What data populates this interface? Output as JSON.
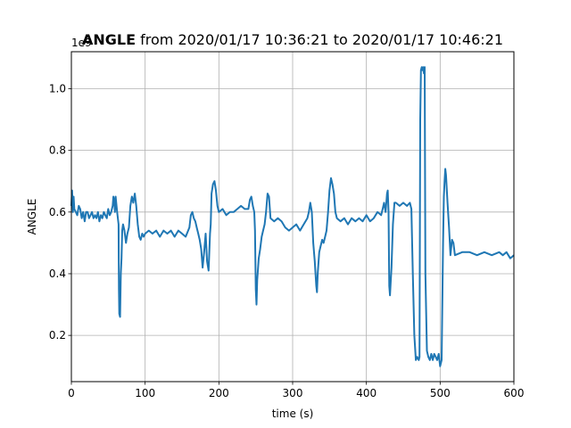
{
  "chart_data": {
    "type": "line",
    "title_bold": "ANGLE",
    "title_rest": " from 2020/01/17 10:36:21 to 2020/01/17 10:46:21",
    "xlabel": "time (s)",
    "ylabel": "ANGLE",
    "y_offset_text": "1e9",
    "xlim": [
      0,
      600
    ],
    "ylim": [
      0.05,
      1.12
    ],
    "xticks": [
      0,
      100,
      200,
      300,
      400,
      500,
      600
    ],
    "xtick_labels": [
      "0",
      "100",
      "200",
      "300",
      "400",
      "500",
      "600"
    ],
    "yticks": [
      0.2,
      0.4,
      0.6,
      0.8,
      1.0
    ],
    "ytick_labels": [
      "0.2",
      "0.4",
      "0.6",
      "0.8",
      "1.0"
    ],
    "grid": true,
    "series": [
      {
        "color": "#1f77b4",
        "x": [
          0,
          1,
          2,
          3,
          4,
          6,
          8,
          10,
          12,
          14,
          16,
          18,
          20,
          22,
          24,
          26,
          28,
          30,
          32,
          34,
          36,
          38,
          40,
          42,
          44,
          46,
          48,
          50,
          52,
          54,
          56,
          57,
          58,
          59,
          60,
          62,
          64,
          64.5,
          65,
          66,
          67,
          68,
          69,
          70,
          72,
          74,
          76,
          78,
          80,
          82,
          84,
          86,
          88,
          90,
          92,
          94,
          96,
          98,
          100,
          105,
          110,
          115,
          120,
          125,
          130,
          135,
          140,
          145,
          150,
          155,
          160,
          162,
          164,
          166,
          168,
          170,
          172,
          174,
          176,
          178,
          180,
          182,
          184,
          186,
          188,
          189,
          190,
          192,
          194,
          196,
          198,
          200,
          205,
          210,
          215,
          220,
          225,
          230,
          235,
          240,
          242,
          244,
          246,
          248,
          249,
          250,
          251,
          252,
          254,
          256,
          258,
          260,
          262,
          264,
          266,
          268,
          270,
          275,
          280,
          285,
          290,
          295,
          300,
          305,
          310,
          315,
          320,
          322,
          324,
          326,
          328,
          330,
          332,
          333,
          334,
          336,
          338,
          340,
          342,
          344,
          346,
          348,
          350,
          352,
          354,
          356,
          358,
          360,
          365,
          370,
          375,
          380,
          385,
          390,
          395,
          400,
          405,
          410,
          415,
          420,
          422,
          424,
          426,
          428,
          429,
          430,
          431,
          432,
          434,
          436,
          438,
          440,
          445,
          450,
          455,
          459,
          461,
          463,
          465,
          467,
          469,
          471,
          472,
          473,
          474,
          475,
          476,
          477,
          478,
          479,
          480,
          482,
          484,
          486,
          488,
          490,
          492,
          494,
          496,
          498,
          500,
          502,
          504,
          505,
          506,
          507,
          508,
          510,
          512,
          514,
          516,
          518,
          520,
          530,
          540,
          550,
          560,
          570,
          580,
          585,
          590,
          595,
          600
        ],
        "y": [
          0.62,
          0.67,
          0.6,
          0.65,
          0.61,
          0.6,
          0.59,
          0.62,
          0.61,
          0.58,
          0.6,
          0.57,
          0.6,
          0.6,
          0.58,
          0.59,
          0.6,
          0.58,
          0.59,
          0.58,
          0.6,
          0.57,
          0.59,
          0.58,
          0.6,
          0.59,
          0.58,
          0.61,
          0.59,
          0.6,
          0.62,
          0.65,
          0.64,
          0.6,
          0.65,
          0.6,
          0.56,
          0.35,
          0.27,
          0.26,
          0.4,
          0.45,
          0.54,
          0.56,
          0.54,
          0.5,
          0.53,
          0.55,
          0.62,
          0.65,
          0.63,
          0.66,
          0.62,
          0.56,
          0.52,
          0.51,
          0.53,
          0.52,
          0.53,
          0.54,
          0.53,
          0.54,
          0.52,
          0.54,
          0.53,
          0.54,
          0.52,
          0.54,
          0.53,
          0.52,
          0.55,
          0.59,
          0.6,
          0.58,
          0.57,
          0.55,
          0.53,
          0.51,
          0.48,
          0.42,
          0.47,
          0.53,
          0.44,
          0.41,
          0.53,
          0.56,
          0.66,
          0.69,
          0.7,
          0.67,
          0.62,
          0.6,
          0.61,
          0.59,
          0.6,
          0.6,
          0.61,
          0.62,
          0.61,
          0.61,
          0.64,
          0.65,
          0.62,
          0.6,
          0.54,
          0.35,
          0.3,
          0.38,
          0.45,
          0.48,
          0.52,
          0.54,
          0.56,
          0.6,
          0.66,
          0.65,
          0.58,
          0.57,
          0.58,
          0.57,
          0.55,
          0.54,
          0.55,
          0.56,
          0.54,
          0.56,
          0.58,
          0.6,
          0.63,
          0.6,
          0.5,
          0.44,
          0.36,
          0.34,
          0.4,
          0.47,
          0.49,
          0.51,
          0.5,
          0.52,
          0.54,
          0.6,
          0.67,
          0.71,
          0.69,
          0.66,
          0.6,
          0.58,
          0.57,
          0.58,
          0.56,
          0.58,
          0.57,
          0.58,
          0.57,
          0.59,
          0.57,
          0.58,
          0.6,
          0.59,
          0.61,
          0.63,
          0.6,
          0.66,
          0.67,
          0.6,
          0.36,
          0.33,
          0.42,
          0.56,
          0.63,
          0.63,
          0.62,
          0.63,
          0.62,
          0.63,
          0.61,
          0.4,
          0.2,
          0.12,
          0.13,
          0.12,
          0.13,
          0.9,
          1.06,
          1.07,
          1.06,
          1.07,
          1.05,
          1.07,
          0.4,
          0.15,
          0.13,
          0.12,
          0.14,
          0.12,
          0.14,
          0.13,
          0.12,
          0.14,
          0.1,
          0.12,
          0.5,
          0.65,
          0.7,
          0.74,
          0.72,
          0.63,
          0.55,
          0.46,
          0.51,
          0.5,
          0.46,
          0.47,
          0.47,
          0.46,
          0.47,
          0.46,
          0.47,
          0.46,
          0.47,
          0.45,
          0.46
        ]
      }
    ]
  }
}
